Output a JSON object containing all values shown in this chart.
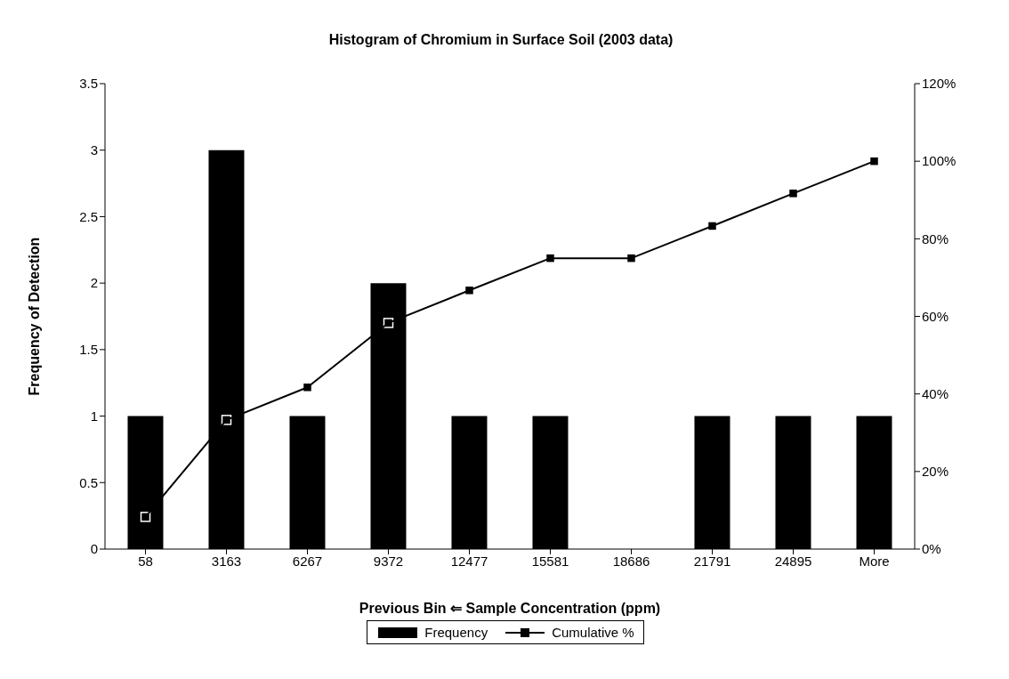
{
  "chart_data": {
    "type": "bar",
    "title": "Histogram of Chromium in Surface Soil (2003 data)",
    "xlabel": "Previous Bin ⇐ Sample Concentration (ppm)",
    "ylabel": "Frequency of Detection",
    "categories": [
      "58",
      "3163",
      "6267",
      "9372",
      "12477",
      "15581",
      "18686",
      "21791",
      "24895",
      "More"
    ],
    "series": [
      {
        "name": "Frequency",
        "color": "#000000",
        "values": [
          1,
          3,
          1,
          2,
          1,
          1,
          0,
          1,
          1,
          1
        ]
      },
      {
        "name": "Cumulative %",
        "type": "line",
        "axis": "y2",
        "color": "#000000",
        "marker": "square",
        "line_style": "solid",
        "values": [
          8.3,
          33.3,
          41.7,
          58.3,
          66.7,
          75,
          75,
          83.3,
          91.7,
          100
        ]
      }
    ],
    "ylim": [
      0,
      3.5
    ],
    "yticks": [
      0,
      0.5,
      1,
      1.5,
      2,
      2.5,
      3,
      3.5
    ],
    "y2lim": [
      0,
      120
    ],
    "y2ticks": [
      {
        "value": 0,
        "label": "0%"
      },
      {
        "value": 20,
        "label": "20%"
      },
      {
        "value": 40,
        "label": "40%"
      },
      {
        "value": 60,
        "label": "60%"
      },
      {
        "value": 80,
        "label": "80%"
      },
      {
        "value": 100,
        "label": "100%"
      },
      {
        "value": 120,
        "label": "120%"
      }
    ],
    "grid": false,
    "legend": "bottom"
  }
}
